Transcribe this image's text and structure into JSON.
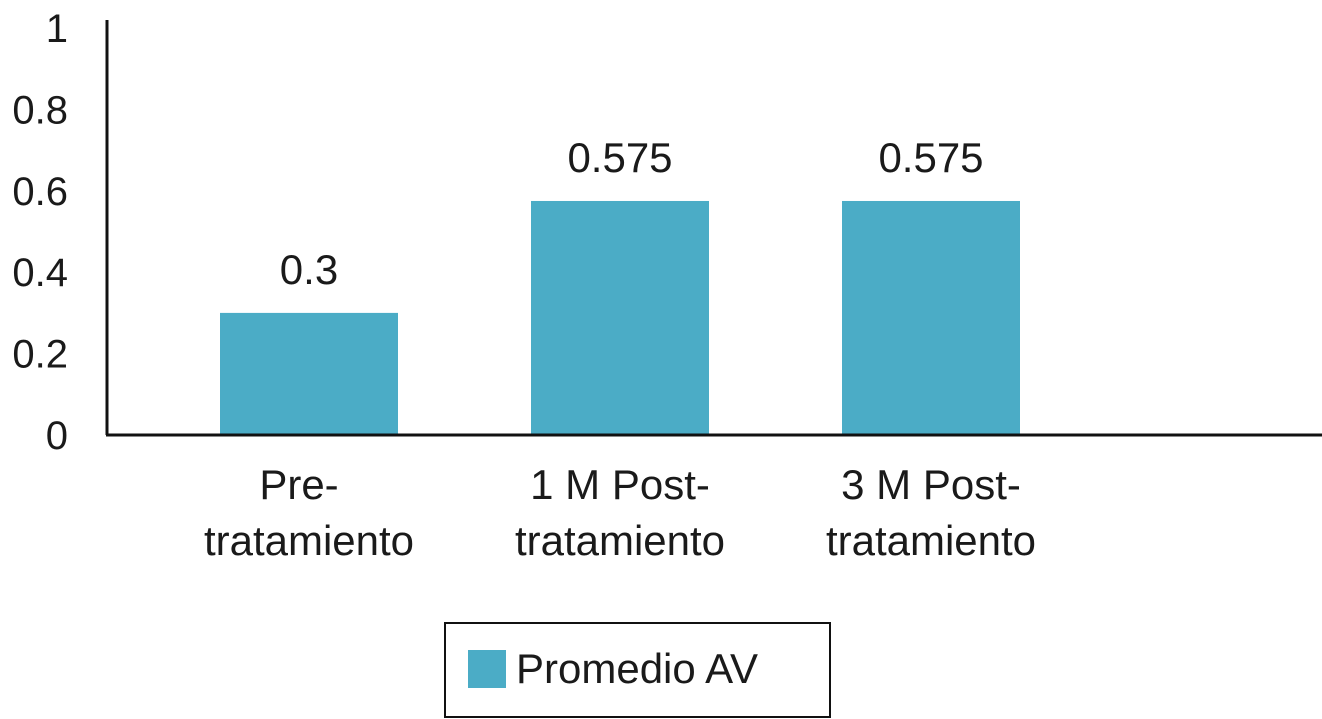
{
  "chart_data": {
    "type": "bar",
    "categories": [
      [
        "Pre-",
        "tratamiento"
      ],
      [
        "1 M Post-",
        "tratamiento"
      ],
      [
        "3 M Post-",
        "tratamiento"
      ]
    ],
    "series": [
      {
        "name": "Promedio AV",
        "values": [
          0.3,
          0.575,
          0.575
        ],
        "color": "#4bacc6"
      }
    ],
    "data_labels": [
      "0.3",
      "0.575",
      "0.575"
    ],
    "ylim": [
      0,
      1
    ],
    "yticks": [
      "0",
      "0.2",
      "0.4",
      "0.6",
      "0.8",
      "1"
    ],
    "ytick_values": [
      0,
      0.2,
      0.4,
      0.6,
      0.8,
      1
    ],
    "grid": false,
    "legend": {
      "position": "bottom"
    },
    "title": "",
    "xlabel": "",
    "ylabel": ""
  }
}
